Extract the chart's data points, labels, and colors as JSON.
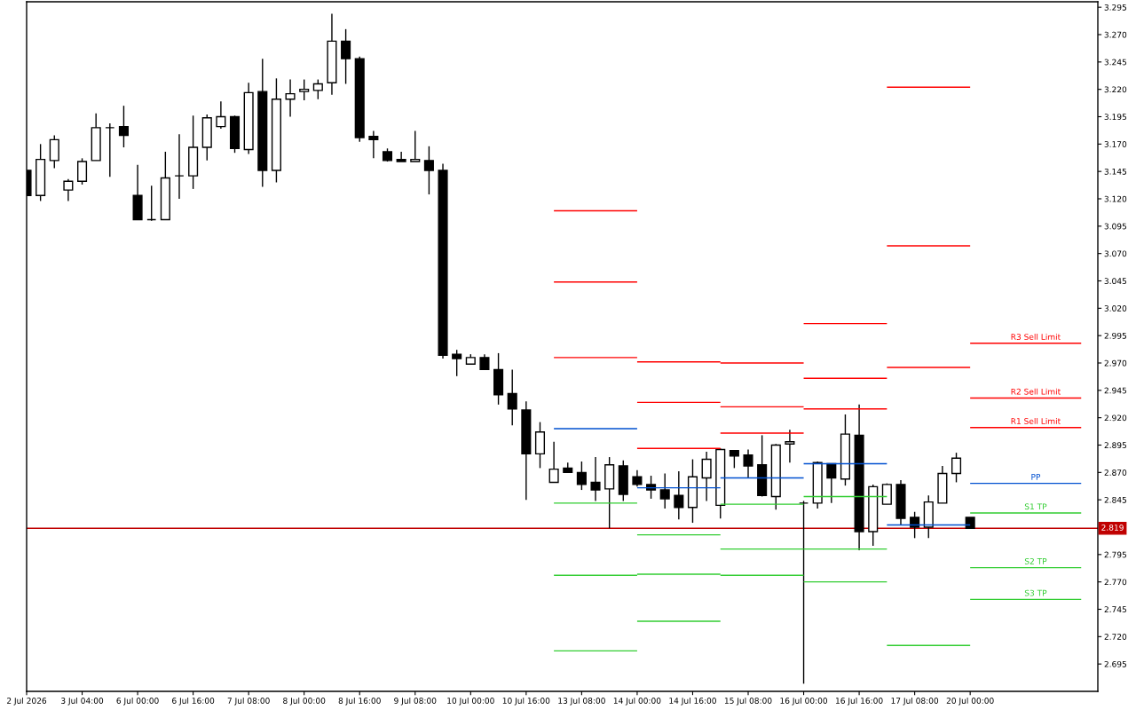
{
  "chart_data": {
    "type": "candlestick",
    "color": "#000000",
    "categories": [
      "2 Jul 2026",
      null,
      null,
      null,
      "3 Jul 04:00",
      null,
      null,
      null,
      "6 Jul 00:00",
      null,
      null,
      null,
      "6 Jul 16:00",
      null,
      null,
      null,
      "7 Jul 08:00",
      null,
      null,
      null,
      "8 Jul 00:00",
      null,
      null,
      null,
      "8 Jul 16:00",
      null,
      null,
      null,
      "9 Jul 08:00",
      null,
      null,
      null,
      "10 Jul 00:00",
      null,
      null,
      null,
      "10 Jul 16:00",
      null,
      null,
      null,
      "13 Jul 08:00",
      null,
      null,
      null,
      "14 Jul 00:00",
      null,
      null,
      null,
      "14 Jul 16:00",
      null,
      null,
      null,
      "15 Jul 08:00",
      null,
      null,
      null,
      "16 Jul 00:00",
      null,
      null,
      null,
      "16 Jul 16:00",
      null,
      null,
      null,
      "17 Jul 08:00",
      null,
      null,
      null,
      "20 Jul 00:00",
      null,
      null,
      null,
      null,
      null,
      null,
      null,
      null,
      null
    ],
    "ohlc": [
      [
        3.146,
        3.146,
        3.123,
        3.123
      ],
      [
        3.123,
        3.17,
        3.118,
        3.156
      ],
      [
        3.155,
        3.178,
        3.148,
        3.174
      ],
      [
        3.128,
        3.138,
        3.118,
        3.136
      ],
      [
        3.136,
        3.157,
        3.133,
        3.154
      ],
      [
        3.155,
        3.198,
        3.155,
        3.185
      ],
      [
        3.185,
        3.189,
        3.14,
        3.185
      ],
      [
        3.186,
        3.205,
        3.167,
        3.178
      ],
      [
        3.123,
        3.151,
        3.101,
        3.101
      ],
      [
        3.101,
        3.132,
        3.1,
        3.101
      ],
      [
        3.101,
        3.163,
        3.101,
        3.139
      ],
      [
        3.141,
        3.179,
        3.12,
        3.141
      ],
      [
        3.141,
        3.196,
        3.129,
        3.167
      ],
      [
        3.167,
        3.197,
        3.155,
        3.194
      ],
      [
        3.186,
        3.209,
        3.184,
        3.195
      ],
      [
        3.195,
        3.196,
        3.162,
        3.166
      ],
      [
        3.165,
        3.226,
        3.161,
        3.217
      ],
      [
        3.218,
        3.248,
        3.131,
        3.146
      ],
      [
        3.146,
        3.23,
        3.135,
        3.211
      ],
      [
        3.211,
        3.229,
        3.195,
        3.216
      ],
      [
        3.218,
        3.229,
        3.21,
        3.22
      ],
      [
        3.219,
        3.229,
        3.211,
        3.225
      ],
      [
        3.226,
        3.289,
        3.215,
        3.264
      ],
      [
        3.264,
        3.275,
        3.225,
        3.248
      ],
      [
        3.248,
        3.25,
        3.172,
        3.176
      ],
      [
        3.177,
        3.182,
        3.157,
        3.174
      ],
      [
        3.163,
        3.166,
        3.154,
        3.155
      ],
      [
        3.156,
        3.163,
        3.154,
        3.154
      ],
      [
        3.154,
        3.182,
        3.154,
        3.156
      ],
      [
        3.155,
        3.168,
        3.124,
        3.146
      ],
      [
        3.146,
        3.152,
        2.974,
        2.977
      ],
      [
        2.978,
        2.982,
        2.958,
        2.974
      ],
      [
        2.969,
        2.978,
        2.969,
        2.975
      ],
      [
        2.975,
        2.978,
        2.964,
        2.964
      ],
      [
        2.964,
        2.979,
        2.932,
        2.941
      ],
      [
        2.942,
        2.964,
        2.913,
        2.928
      ],
      [
        2.927,
        2.935,
        2.845,
        2.887
      ],
      [
        2.887,
        2.916,
        2.874,
        2.907
      ],
      [
        2.861,
        2.898,
        2.861,
        2.873
      ],
      [
        2.874,
        2.879,
        2.87,
        2.87
      ],
      [
        2.87,
        2.88,
        2.854,
        2.859
      ],
      [
        2.861,
        2.884,
        2.844,
        2.854
      ],
      [
        2.855,
        2.884,
        2.819,
        2.877
      ],
      [
        2.876,
        2.881,
        2.844,
        2.85
      ],
      [
        2.866,
        2.872,
        2.857,
        2.859
      ],
      [
        2.859,
        2.867,
        2.846,
        2.854
      ],
      [
        2.854,
        2.869,
        2.837,
        2.846
      ],
      [
        2.849,
        2.871,
        2.827,
        2.838
      ],
      [
        2.838,
        2.882,
        2.824,
        2.866
      ],
      [
        2.865,
        2.889,
        2.844,
        2.882
      ],
      [
        2.84,
        2.892,
        2.828,
        2.891
      ],
      [
        2.89,
        2.89,
        2.874,
        2.885
      ],
      [
        2.886,
        2.891,
        2.865,
        2.876
      ],
      [
        2.877,
        2.904,
        2.848,
        2.849
      ],
      [
        2.848,
        2.896,
        2.836,
        2.895
      ],
      [
        2.896,
        2.909,
        2.879,
        2.898
      ],
      [
        2.842,
        2.844,
        2.677,
        2.842
      ],
      [
        2.842,
        2.88,
        2.837,
        2.879
      ],
      [
        2.878,
        2.878,
        2.842,
        2.865
      ],
      [
        2.864,
        2.923,
        2.858,
        2.905
      ],
      [
        2.904,
        2.932,
        2.799,
        2.816
      ],
      [
        2.816,
        2.859,
        2.803,
        2.857
      ],
      [
        2.841,
        2.86,
        2.841,
        2.859
      ],
      [
        2.859,
        2.863,
        2.822,
        2.828
      ],
      [
        2.829,
        2.834,
        2.81,
        2.82
      ],
      [
        2.82,
        2.849,
        2.81,
        2.843
      ],
      [
        2.842,
        2.876,
        2.842,
        2.869
      ],
      [
        2.869,
        2.888,
        2.861,
        2.883
      ],
      [
        2.829,
        2.829,
        2.819,
        2.819
      ],
      null,
      null,
      null,
      null,
      null,
      null,
      null,
      null,
      null
    ],
    "series": [
      {
        "type": "line",
        "color": "#ff0000",
        "values": [
          null,
          null,
          null,
          null,
          null,
          null,
          null,
          null,
          null,
          null,
          null,
          null,
          null,
          null,
          null,
          null,
          null,
          null,
          null,
          null,
          null,
          null,
          null,
          null,
          null,
          null,
          null,
          null,
          null,
          null,
          null,
          null,
          null,
          null,
          null,
          null,
          null,
          null,
          3.109,
          3.109,
          3.109,
          3.109,
          3.109,
          3.109,
          3.109,
          null,
          null,
          null,
          null,
          null,
          2.97,
          2.97,
          2.97,
          2.97,
          2.97,
          2.97,
          2.97,
          null,
          null,
          null,
          null,
          null,
          3.222,
          3.222,
          3.222,
          3.222,
          3.222,
          3.222,
          3.222,
          null,
          null,
          null,
          null,
          null,
          null,
          null,
          null,
          null
        ]
      },
      {
        "type": "line",
        "color": "#ff0000",
        "values": [
          null,
          null,
          null,
          null,
          null,
          null,
          null,
          null,
          null,
          null,
          null,
          null,
          null,
          null,
          null,
          null,
          null,
          null,
          null,
          null,
          null,
          null,
          null,
          null,
          null,
          null,
          null,
          null,
          null,
          null,
          null,
          null,
          null,
          null,
          null,
          null,
          null,
          null,
          3.044,
          3.044,
          3.044,
          3.044,
          3.044,
          3.044,
          3.044,
          null,
          null,
          null,
          null,
          null,
          2.93,
          2.93,
          2.93,
          2.93,
          2.93,
          2.93,
          2.93,
          null,
          null,
          null,
          null,
          null,
          3.077,
          3.077,
          3.077,
          3.077,
          3.077,
          3.077,
          3.077,
          null,
          null,
          null,
          null,
          null,
          null,
          null,
          null,
          null
        ]
      },
      {
        "type": "line",
        "color": "#ff0000",
        "values": [
          null,
          null,
          null,
          null,
          null,
          null,
          null,
          null,
          null,
          null,
          null,
          null,
          null,
          null,
          null,
          null,
          null,
          null,
          null,
          null,
          null,
          null,
          null,
          null,
          null,
          null,
          null,
          null,
          null,
          null,
          null,
          null,
          null,
          null,
          null,
          null,
          null,
          null,
          2.975,
          2.975,
          2.975,
          2.975,
          2.975,
          2.975,
          2.975,
          null,
          null,
          null,
          null,
          null,
          2.906,
          2.906,
          2.906,
          2.906,
          2.906,
          2.906,
          2.906,
          null,
          null,
          null,
          null,
          null,
          2.966,
          2.966,
          2.966,
          2.966,
          2.966,
          2.966,
          2.966,
          null,
          null,
          null,
          null,
          null,
          null,
          null,
          null,
          null
        ]
      },
      {
        "type": "line",
        "color": "#0050d0",
        "values": [
          null,
          null,
          null,
          null,
          null,
          null,
          null,
          null,
          null,
          null,
          null,
          null,
          null,
          null,
          null,
          null,
          null,
          null,
          null,
          null,
          null,
          null,
          null,
          null,
          null,
          null,
          null,
          null,
          null,
          null,
          null,
          null,
          null,
          null,
          null,
          null,
          null,
          null,
          2.91,
          2.91,
          2.91,
          2.91,
          2.91,
          2.91,
          2.91,
          null,
          null,
          null,
          null,
          null,
          2.865,
          2.865,
          2.865,
          2.865,
          2.865,
          2.865,
          2.865,
          null,
          null,
          null,
          null,
          null,
          2.822,
          2.822,
          2.822,
          2.822,
          2.822,
          2.822,
          2.822,
          null,
          null,
          null,
          null,
          null,
          null,
          null,
          null,
          null
        ]
      },
      {
        "type": "line",
        "color": "#32cd32",
        "values": [
          null,
          null,
          null,
          null,
          null,
          null,
          null,
          null,
          null,
          null,
          null,
          null,
          null,
          null,
          null,
          null,
          null,
          null,
          null,
          null,
          null,
          null,
          null,
          null,
          null,
          null,
          null,
          null,
          null,
          null,
          null,
          null,
          null,
          null,
          null,
          null,
          null,
          null,
          2.842,
          2.842,
          2.842,
          2.842,
          2.842,
          2.842,
          2.842,
          null,
          null,
          null,
          null,
          null,
          2.841,
          2.841,
          2.841,
          2.841,
          2.841,
          2.841,
          2.841,
          null,
          null,
          null,
          null,
          null,
          2.712,
          2.712,
          2.712,
          2.712,
          2.712,
          2.712,
          2.712,
          null,
          null,
          null,
          null,
          null,
          null,
          null,
          null,
          null
        ]
      },
      {
        "type": "line",
        "color": "#32cd32",
        "values": [
          null,
          null,
          null,
          null,
          null,
          null,
          null,
          null,
          null,
          null,
          null,
          null,
          null,
          null,
          null,
          null,
          null,
          null,
          null,
          null,
          null,
          null,
          null,
          null,
          null,
          null,
          null,
          null,
          null,
          null,
          null,
          null,
          null,
          null,
          null,
          null,
          null,
          null,
          2.776,
          2.776,
          2.776,
          2.776,
          2.776,
          2.776,
          2.776,
          null,
          null,
          null,
          null,
          null,
          2.8,
          2.8,
          2.8,
          2.8,
          2.8,
          2.8,
          2.8,
          null,
          null,
          null,
          null,
          null,
          null,
          null,
          null,
          null,
          null,
          null,
          null,
          null,
          null,
          null,
          null,
          null,
          null,
          null,
          null,
          null
        ]
      },
      {
        "type": "line",
        "color": "#32cd32",
        "values": [
          null,
          null,
          null,
          null,
          null,
          null,
          null,
          null,
          null,
          null,
          null,
          null,
          null,
          null,
          null,
          null,
          null,
          null,
          null,
          null,
          null,
          null,
          null,
          null,
          null,
          null,
          null,
          null,
          null,
          null,
          null,
          null,
          null,
          null,
          null,
          null,
          null,
          null,
          2.707,
          2.707,
          2.707,
          2.707,
          2.707,
          2.707,
          2.707,
          null,
          null,
          null,
          null,
          null,
          2.776,
          2.776,
          2.776,
          2.776,
          2.776,
          2.776,
          2.776,
          null,
          null,
          null,
          null,
          null,
          null,
          null,
          null,
          null,
          null,
          null,
          null,
          null,
          null,
          null,
          null,
          null,
          null,
          null,
          null,
          null
        ]
      },
      {
        "type": "line",
        "name": "R3 Sell Limit",
        "color": "#ff0000",
        "values": [
          null,
          null,
          null,
          null,
          null,
          null,
          null,
          null,
          null,
          null,
          null,
          null,
          null,
          null,
          null,
          null,
          null,
          null,
          null,
          null,
          null,
          null,
          null,
          null,
          null,
          null,
          null,
          null,
          null,
          null,
          null,
          null,
          null,
          null,
          null,
          null,
          null,
          null,
          null,
          null,
          null,
          null,
          null,
          null,
          2.971,
          2.971,
          2.971,
          2.971,
          2.971,
          2.971,
          2.971,
          null,
          null,
          null,
          null,
          null,
          3.006,
          3.006,
          3.006,
          3.006,
          3.006,
          3.006,
          3.006,
          null,
          null,
          null,
          null,
          null,
          2.988,
          2.988,
          2.988,
          2.988,
          2.988,
          2.988,
          2.988,
          2.988,
          2.988,
          null
        ]
      },
      {
        "type": "line",
        "name": "R2 Sell Limit",
        "color": "#ff0000",
        "values": [
          null,
          null,
          null,
          null,
          null,
          null,
          null,
          null,
          null,
          null,
          null,
          null,
          null,
          null,
          null,
          null,
          null,
          null,
          null,
          null,
          null,
          null,
          null,
          null,
          null,
          null,
          null,
          null,
          null,
          null,
          null,
          null,
          null,
          null,
          null,
          null,
          null,
          null,
          null,
          null,
          null,
          null,
          null,
          null,
          2.934,
          2.934,
          2.934,
          2.934,
          2.934,
          2.934,
          2.934,
          null,
          null,
          null,
          null,
          null,
          2.956,
          2.956,
          2.956,
          2.956,
          2.956,
          2.956,
          2.956,
          null,
          null,
          null,
          null,
          null,
          2.938,
          2.938,
          2.938,
          2.938,
          2.938,
          2.938,
          2.938,
          2.938,
          2.938,
          null
        ]
      },
      {
        "type": "line",
        "name": "R1 Sell Limit",
        "color": "#ff0000",
        "values": [
          null,
          null,
          null,
          null,
          null,
          null,
          null,
          null,
          null,
          null,
          null,
          null,
          null,
          null,
          null,
          null,
          null,
          null,
          null,
          null,
          null,
          null,
          null,
          null,
          null,
          null,
          null,
          null,
          null,
          null,
          null,
          null,
          null,
          null,
          null,
          null,
          null,
          null,
          null,
          null,
          null,
          null,
          null,
          null,
          2.892,
          2.892,
          2.892,
          2.892,
          2.892,
          2.892,
          2.892,
          null,
          null,
          null,
          null,
          null,
          2.928,
          2.928,
          2.928,
          2.928,
          2.928,
          2.928,
          2.928,
          null,
          null,
          null,
          null,
          null,
          2.911,
          2.911,
          2.911,
          2.911,
          2.911,
          2.911,
          2.911,
          2.911,
          2.911,
          null
        ]
      },
      {
        "type": "line",
        "name": "PP",
        "color": "#0050d0",
        "values": [
          null,
          null,
          null,
          null,
          null,
          null,
          null,
          null,
          null,
          null,
          null,
          null,
          null,
          null,
          null,
          null,
          null,
          null,
          null,
          null,
          null,
          null,
          null,
          null,
          null,
          null,
          null,
          null,
          null,
          null,
          null,
          null,
          null,
          null,
          null,
          null,
          null,
          null,
          null,
          null,
          null,
          null,
          null,
          null,
          2.856,
          2.856,
          2.856,
          2.856,
          2.856,
          2.856,
          2.856,
          null,
          null,
          null,
          null,
          null,
          2.878,
          2.878,
          2.878,
          2.878,
          2.878,
          2.878,
          2.878,
          null,
          null,
          null,
          null,
          null,
          2.86,
          2.86,
          2.86,
          2.86,
          2.86,
          2.86,
          2.86,
          2.86,
          2.86,
          null
        ]
      },
      {
        "type": "line",
        "name": "S1 TP",
        "color": "#32cd32",
        "values": [
          null,
          null,
          null,
          null,
          null,
          null,
          null,
          null,
          null,
          null,
          null,
          null,
          null,
          null,
          null,
          null,
          null,
          null,
          null,
          null,
          null,
          null,
          null,
          null,
          null,
          null,
          null,
          null,
          null,
          null,
          null,
          null,
          null,
          null,
          null,
          null,
          null,
          null,
          null,
          null,
          null,
          null,
          null,
          null,
          2.813,
          2.813,
          2.813,
          2.813,
          2.813,
          2.813,
          2.813,
          null,
          null,
          null,
          null,
          null,
          2.848,
          2.848,
          2.848,
          2.848,
          2.848,
          2.848,
          2.848,
          null,
          null,
          null,
          null,
          null,
          2.833,
          2.833,
          2.833,
          2.833,
          2.833,
          2.833,
          2.833,
          2.833,
          2.833,
          null
        ]
      },
      {
        "type": "line",
        "name": "S2 TP",
        "color": "#32cd32",
        "values": [
          null,
          null,
          null,
          null,
          null,
          null,
          null,
          null,
          null,
          null,
          null,
          null,
          null,
          null,
          null,
          null,
          null,
          null,
          null,
          null,
          null,
          null,
          null,
          null,
          null,
          null,
          null,
          null,
          null,
          null,
          null,
          null,
          null,
          null,
          null,
          null,
          null,
          null,
          null,
          null,
          null,
          null,
          null,
          null,
          2.777,
          2.777,
          2.777,
          2.777,
          2.777,
          2.777,
          2.777,
          null,
          null,
          null,
          null,
          null,
          2.8,
          2.8,
          2.8,
          2.8,
          2.8,
          2.8,
          2.8,
          null,
          null,
          null,
          null,
          null,
          2.783,
          2.783,
          2.783,
          2.783,
          2.783,
          2.783,
          2.783,
          2.783,
          2.783,
          null
        ]
      },
      {
        "type": "line",
        "name": "S3 TP",
        "color": "#32cd32",
        "values": [
          null,
          null,
          null,
          null,
          null,
          null,
          null,
          null,
          null,
          null,
          null,
          null,
          null,
          null,
          null,
          null,
          null,
          null,
          null,
          null,
          null,
          null,
          null,
          null,
          null,
          null,
          null,
          null,
          null,
          null,
          null,
          null,
          null,
          null,
          null,
          null,
          null,
          null,
          null,
          null,
          null,
          null,
          null,
          null,
          2.734,
          2.734,
          2.734,
          2.734,
          2.734,
          2.734,
          2.734,
          null,
          null,
          null,
          null,
          null,
          2.77,
          2.77,
          2.77,
          2.77,
          2.77,
          2.77,
          2.77,
          null,
          null,
          null,
          null,
          null,
          2.754,
          2.754,
          2.754,
          2.754,
          2.754,
          2.754,
          2.754,
          2.754,
          2.754,
          null
        ]
      }
    ],
    "ylim": [
      2.67,
      3.3
    ],
    "yticks": [
      2.695,
      {
        "value": 2.72,
        "label": "2.720"
      },
      2.745,
      {
        "value": 2.77,
        "label": "2.770"
      },
      2.795,
      2.845,
      {
        "value": 2.87,
        "label": "2.870"
      },
      2.895,
      {
        "value": 2.92,
        "label": "2.920"
      },
      2.945,
      {
        "value": 2.97,
        "label": "2.970"
      },
      2.995,
      {
        "value": 3.02,
        "label": "3.020"
      },
      3.045,
      {
        "value": 3.07,
        "label": "3.070"
      },
      3.095,
      {
        "value": 3.12,
        "label": "3.120"
      },
      3.145,
      {
        "value": 3.17,
        "label": "3.170"
      },
      3.195,
      {
        "value": 3.22,
        "label": "3.220"
      },
      3.245,
      {
        "value": 3.27,
        "label": "3.270"
      },
      3.295
    ],
    "ref_lines": [
      {
        "axis": "y",
        "value": 2.819,
        "label": "2.819",
        "color": "#c00000"
      }
    ]
  }
}
